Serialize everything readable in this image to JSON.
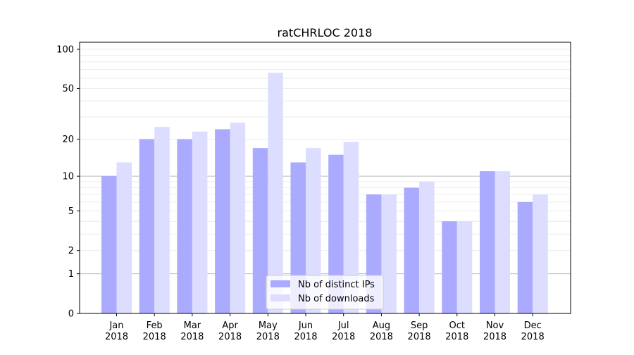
{
  "chart_data": {
    "type": "bar",
    "title": "ratCHRLOC 2018",
    "xlabel": "",
    "ylabel": "",
    "yscale": "log10(y+1)",
    "ylim": [
      0,
      110
    ],
    "yticks": [
      0,
      1,
      2,
      5,
      10,
      20,
      50,
      100
    ],
    "categories": [
      "Jan\n2018",
      "Feb\n2018",
      "Mar\n2018",
      "Apr\n2018",
      "May\n2018",
      "Jun\n2018",
      "Jul\n2018",
      "Aug\n2018",
      "Sep\n2018",
      "Oct\n2018",
      "Nov\n2018",
      "Dec\n2018"
    ],
    "series": [
      {
        "name": "Nb of distinct IPs",
        "color": "#aaaaff",
        "values": [
          10,
          20,
          20,
          24,
          17,
          13,
          15,
          7,
          8,
          4,
          11,
          6
        ]
      },
      {
        "name": "Nb of downloads",
        "color": "#ddddff",
        "values": [
          13,
          25,
          23,
          27,
          66,
          17,
          19,
          7,
          9,
          4,
          11,
          7
        ]
      }
    ],
    "legend": "bottom-center",
    "grid": true
  }
}
